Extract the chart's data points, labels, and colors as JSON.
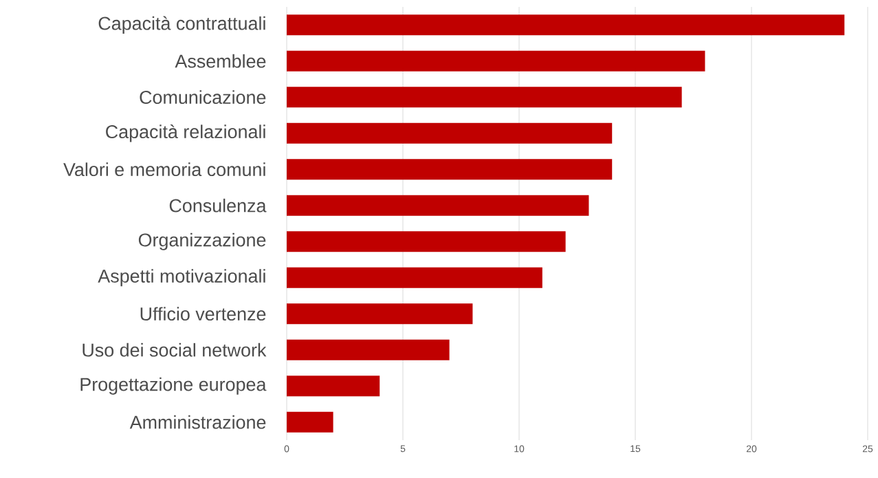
{
  "chart_data": {
    "type": "bar",
    "orientation": "horizontal",
    "categories": [
      "Capacità contrattuali",
      "Assemblee",
      "Comunicazione",
      "Capacità relazionali",
      "Valori e memoria comuni",
      "Consulenza",
      "Organizzazione",
      "Aspetti motivazionali",
      "Ufficio vertenze",
      "Uso dei social network",
      "Progettazione europea",
      "Amministrazione"
    ],
    "values": [
      24,
      18,
      17,
      14,
      14,
      13,
      12,
      11,
      8,
      7,
      4,
      2
    ],
    "color": "#c00000",
    "xlim": [
      0,
      25
    ],
    "xticks": [
      0,
      5,
      10,
      15,
      20,
      25
    ],
    "grid": "x"
  }
}
